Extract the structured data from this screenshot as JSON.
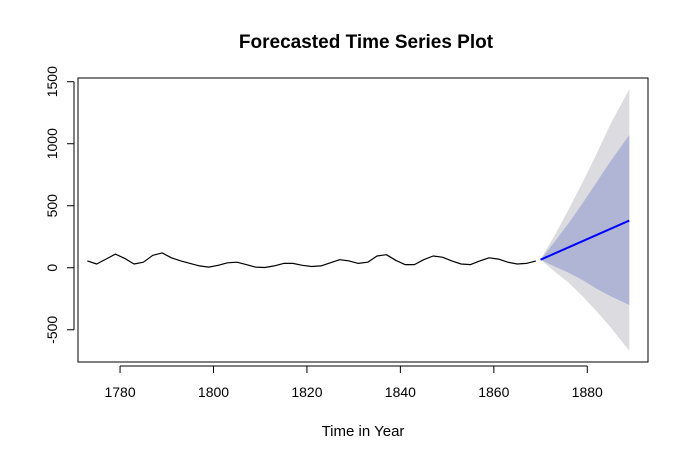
{
  "chart_data": {
    "type": "line",
    "title": "Forecasted Time Series Plot",
    "xlabel": "Time in Year",
    "ylabel": "",
    "xlim": [
      1771,
      1893
    ],
    "ylim": [
      -760,
      1530
    ],
    "x_ticks": [
      1780,
      1800,
      1820,
      1840,
      1860,
      1880
    ],
    "y_ticks": [
      -500,
      0,
      500,
      1000,
      1500
    ],
    "grid": false,
    "series": [
      {
        "kind": "observed",
        "color": "#000000",
        "x": [
          1773,
          1775,
          1777,
          1779,
          1781,
          1783,
          1785,
          1787,
          1789,
          1791,
          1793,
          1795,
          1797,
          1799,
          1801,
          1803,
          1805,
          1807,
          1809,
          1811,
          1813,
          1815,
          1817,
          1819,
          1821,
          1823,
          1825,
          1827,
          1829,
          1831,
          1833,
          1835,
          1837,
          1839,
          1841,
          1843,
          1845,
          1847,
          1849,
          1851,
          1853,
          1855,
          1857,
          1859,
          1861,
          1863,
          1865,
          1867,
          1869
        ],
        "y": [
          55,
          30,
          70,
          110,
          75,
          30,
          45,
          100,
          120,
          80,
          55,
          35,
          15,
          5,
          20,
          40,
          45,
          25,
          5,
          2,
          15,
          35,
          35,
          20,
          10,
          15,
          40,
          65,
          55,
          35,
          45,
          95,
          105,
          60,
          25,
          25,
          65,
          95,
          85,
          55,
          30,
          25,
          55,
          80,
          70,
          45,
          30,
          35,
          55
        ]
      },
      {
        "kind": "forecast",
        "color": "#0000ff",
        "x": [
          1870,
          1889
        ],
        "y": [
          65,
          380
        ]
      }
    ],
    "intervals": [
      {
        "kind": "outer-band",
        "color": "#dcdce0",
        "x": [
          1870,
          1873,
          1876,
          1879,
          1882,
          1885,
          1889
        ],
        "lower": [
          65,
          -30,
          -120,
          -230,
          -350,
          -480,
          -670
        ],
        "upper": [
          65,
          260,
          470,
          690,
          920,
          1160,
          1440
        ]
      },
      {
        "kind": "inner-band",
        "color": "#b1b5d5",
        "x": [
          1870,
          1873,
          1876,
          1879,
          1882,
          1885,
          1889
        ],
        "lower": [
          65,
          10,
          -40,
          -100,
          -170,
          -230,
          -300
        ],
        "upper": [
          65,
          210,
          360,
          520,
          690,
          860,
          1070
        ]
      }
    ]
  }
}
